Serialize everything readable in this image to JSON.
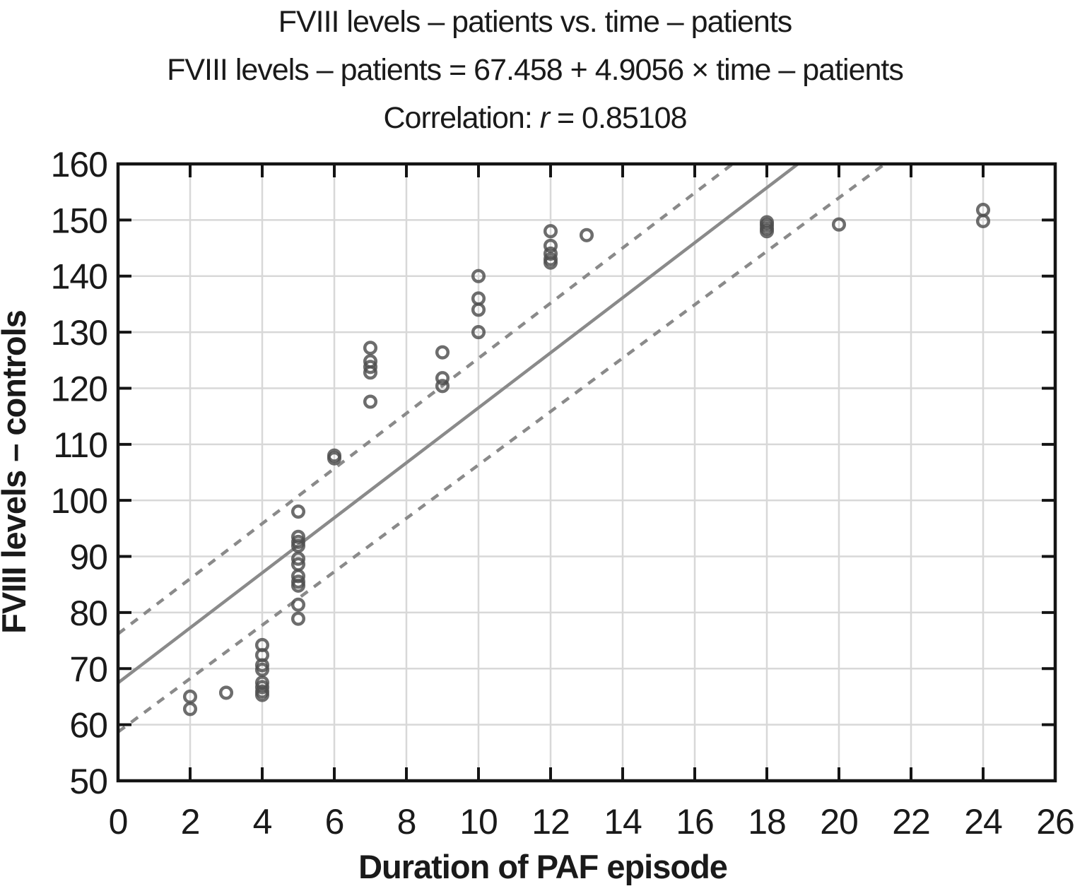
{
  "chart_data": {
    "type": "scatter",
    "title": "FVIII levels – patients vs. time – patients",
    "subtitle": "FVIII levels – patients = 67.458 + 4.9056 × time – patients",
    "correlation": {
      "prefix": "Correlation: ",
      "symbol": "r",
      "value": " = 0.85108"
    },
    "xlabel": "Duration of PAF episode",
    "ylabel": "FVIII levels – controls",
    "xlim": [
      0,
      26
    ],
    "ylim": [
      50,
      160
    ],
    "xticks": [
      0,
      2,
      4,
      6,
      8,
      10,
      12,
      14,
      16,
      18,
      20,
      22,
      24,
      26
    ],
    "yticks": [
      50,
      60,
      70,
      80,
      90,
      100,
      110,
      120,
      130,
      140,
      150,
      160
    ],
    "grid": true,
    "legend": "none",
    "marker": "open-circle",
    "points": [
      [
        2,
        65.0
      ],
      [
        2,
        62.8
      ],
      [
        3,
        65.7
      ],
      [
        4,
        74.2
      ],
      [
        4,
        72.4
      ],
      [
        4,
        70.6
      ],
      [
        4,
        69.8
      ],
      [
        4,
        67.5
      ],
      [
        4,
        66.7
      ],
      [
        4,
        65.9
      ],
      [
        4,
        65.3
      ],
      [
        5,
        98.0
      ],
      [
        5,
        93.5
      ],
      [
        5,
        92.6
      ],
      [
        5,
        91.9
      ],
      [
        5,
        89.6
      ],
      [
        5,
        88.6
      ],
      [
        5,
        86.5
      ],
      [
        5,
        85.5
      ],
      [
        5,
        84.8
      ],
      [
        5,
        81.4
      ],
      [
        5,
        78.9
      ],
      [
        6,
        108.0
      ],
      [
        6,
        107.5
      ],
      [
        7,
        127.2
      ],
      [
        7,
        124.8
      ],
      [
        7,
        123.8
      ],
      [
        7,
        122.8
      ],
      [
        7,
        117.6
      ],
      [
        9,
        126.4
      ],
      [
        9,
        121.8
      ],
      [
        9,
        120.4
      ],
      [
        10,
        140.0
      ],
      [
        10,
        136.0
      ],
      [
        10,
        134.0
      ],
      [
        10,
        130.0
      ],
      [
        12,
        148.0
      ],
      [
        12,
        145.4
      ],
      [
        12,
        144.0
      ],
      [
        12,
        143.0
      ],
      [
        12,
        142.4
      ],
      [
        13,
        147.3
      ],
      [
        18,
        149.6
      ],
      [
        18,
        149.1
      ],
      [
        18,
        148.5
      ],
      [
        18,
        148.0
      ],
      [
        20,
        149.2
      ],
      [
        24,
        151.8
      ],
      [
        24,
        149.8
      ]
    ],
    "fit_line": {
      "intercept": 67.458,
      "slope": 4.9056,
      "style": "solid"
    },
    "confidence_band": {
      "upper": [
        [
          0,
          76.2
        ],
        [
          17.05,
          160
        ]
      ],
      "lower": [
        [
          0,
          58.7
        ],
        [
          21.27,
          160
        ]
      ],
      "style": "dashed"
    },
    "colors": {
      "marker": "#4d4d4d",
      "line": "#8a8a8a",
      "grid": "#d8d8d8",
      "frame": "#141414",
      "text": "#1a1a1a",
      "background": "#ffffff"
    }
  }
}
